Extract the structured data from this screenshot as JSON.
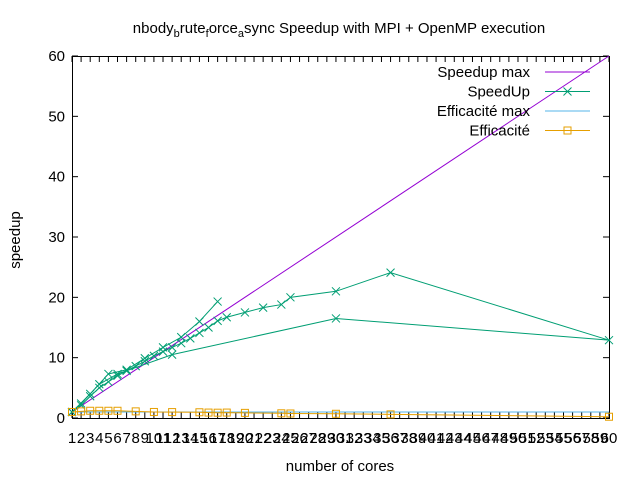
{
  "chart_data": {
    "type": "line",
    "title": {
      "base": "nbody",
      "sub1": "b",
      "mid1": "rute",
      "sub2": "f",
      "mid2": "orce",
      "sub3": "a",
      "rest": "sync Speedup with MPI + OpenMP execution"
    },
    "xlabel": "number of cores",
    "ylabel": "speedup",
    "xlim": [
      1,
      60
    ],
    "ylim": [
      0,
      60
    ],
    "yticks": [
      0,
      10,
      20,
      30,
      40,
      50,
      60
    ],
    "xticks": [
      1,
      2,
      3,
      4,
      5,
      6,
      7,
      8,
      9,
      10,
      11,
      12,
      13,
      14,
      15,
      16,
      17,
      18,
      19,
      20,
      21,
      22,
      23,
      24,
      25,
      26,
      27,
      28,
      29,
      30,
      31,
      32,
      33,
      34,
      35,
      36,
      37,
      38,
      39,
      40,
      41,
      42,
      43,
      44,
      45,
      46,
      47,
      48,
      49,
      50,
      51,
      52,
      53,
      54,
      55,
      56,
      57,
      58,
      59,
      60
    ],
    "grid": false,
    "legend_position": "top-right",
    "series": [
      {
        "name": "Speedup max",
        "color": "#9400d3",
        "marker": "none",
        "x": [
          1,
          60
        ],
        "y": [
          1,
          60
        ]
      },
      {
        "name": "SpeedUp",
        "color": "#009e73",
        "marker": "cross",
        "x": [
          1,
          2,
          3,
          4,
          5,
          6,
          7,
          8,
          9,
          10,
          11,
          12,
          13,
          14,
          15,
          16,
          17,
          18,
          20,
          22,
          24,
          25,
          30,
          36,
          60,
          30,
          12,
          6,
          4,
          2,
          1,
          3,
          5,
          7,
          9,
          11,
          13,
          15,
          17
        ],
        "y": [
          1,
          2.1,
          3.6,
          5.0,
          6.0,
          7.0,
          7.8,
          8.6,
          9.4,
          10.3,
          11.0,
          11.7,
          12.4,
          13.2,
          14.1,
          15.0,
          16.1,
          16.7,
          17.5,
          18.3,
          18.8,
          20.0,
          21.0,
          24.1,
          12.9,
          16.5,
          10.5,
          7.3,
          5.6,
          2.4,
          1,
          4.0,
          7.3,
          8.0,
          9.9,
          11.7,
          13.4,
          16.0,
          19.3
        ]
      },
      {
        "name": "Efficacité max",
        "color": "#56b4e9",
        "marker": "none",
        "x": [
          1,
          60
        ],
        "y": [
          1,
          1
        ]
      },
      {
        "name": "Efficacité",
        "color": "#e69f00",
        "marker": "square",
        "x": [
          1,
          2,
          3,
          4,
          5,
          6,
          8,
          10,
          12,
          15,
          16,
          17,
          18,
          20,
          24,
          25,
          30,
          36,
          60
        ],
        "y": [
          1.0,
          1.1,
          1.2,
          1.2,
          1.2,
          1.2,
          1.1,
          1.0,
          0.98,
          0.95,
          0.9,
          0.88,
          0.9,
          0.85,
          0.78,
          0.75,
          0.7,
          0.6,
          0.21
        ]
      }
    ]
  }
}
